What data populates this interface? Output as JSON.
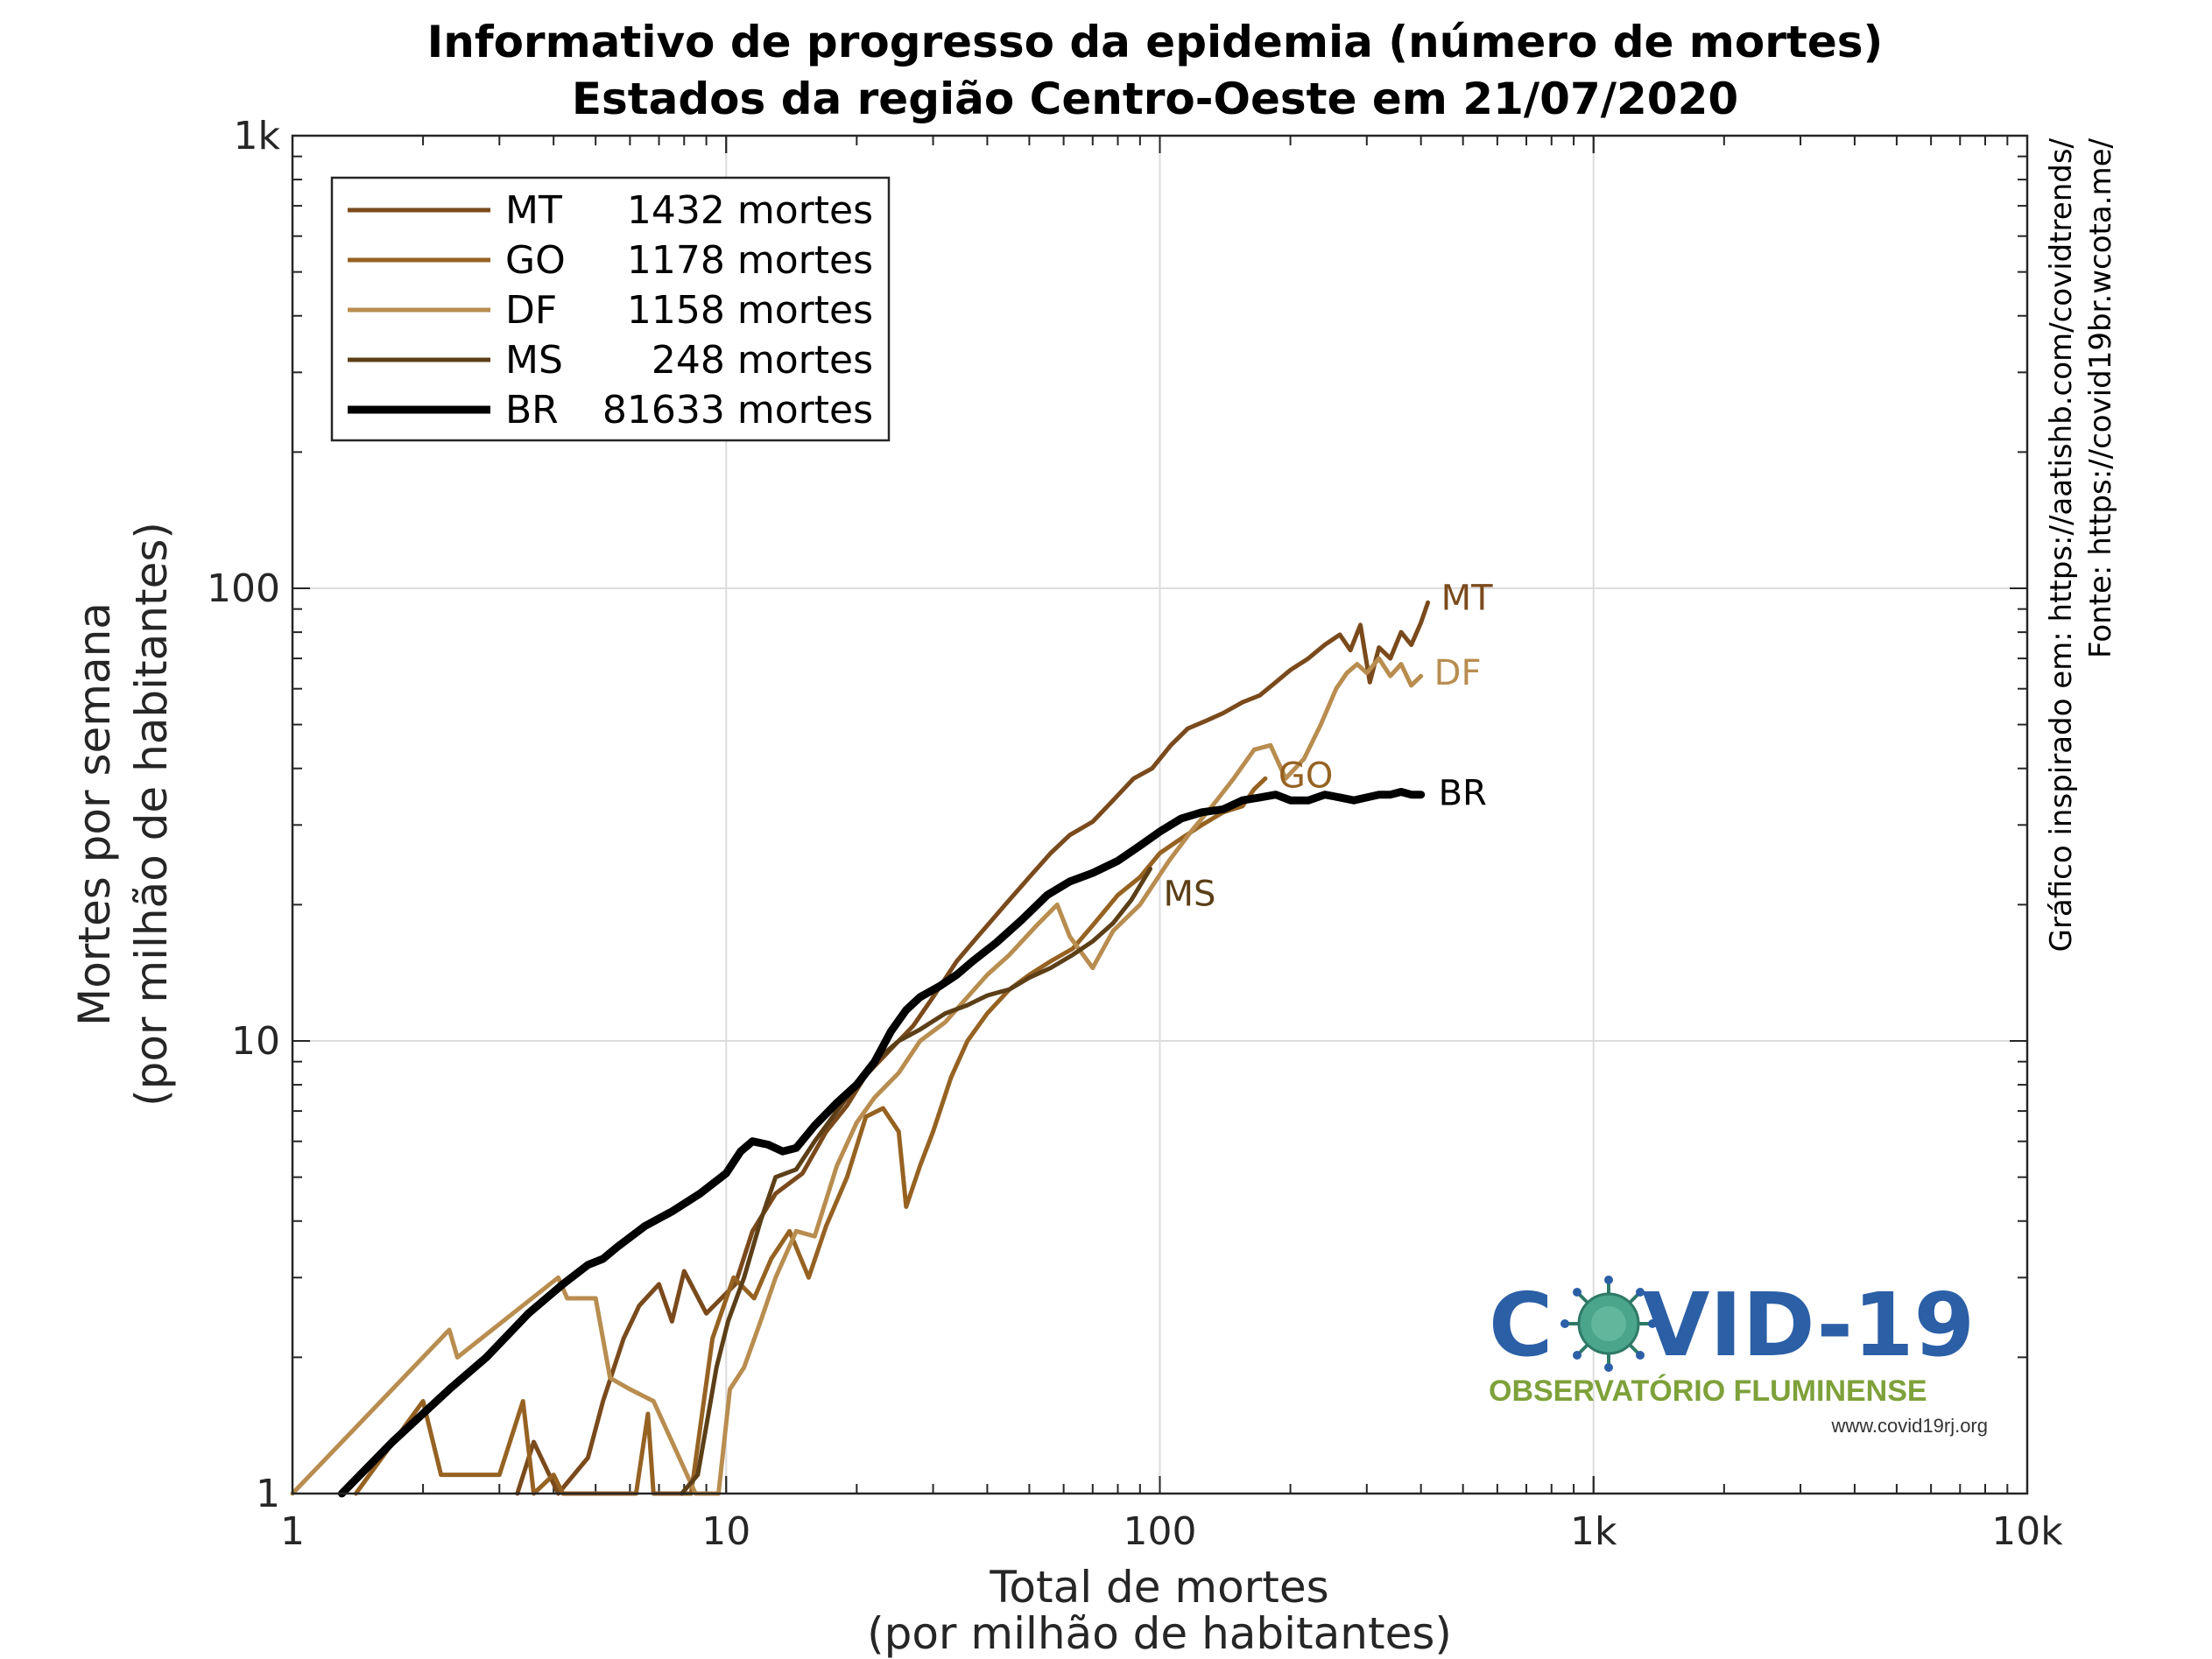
{
  "title_line1": "Informativo de progresso da epidemia (número de mortes)",
  "title_line2": "Estados da região Centro-Oeste em 21/07/2020",
  "credits": {
    "line1": "Gráfico inspirado em: https://aatishb.com/covidtrends/",
    "line2": "Fonte: https://covid19br.wcota.me/"
  },
  "logo": {
    "main_left": "C",
    "main_right": "VID-19",
    "subtitle": "OBSERVATÓRIO FLUMINENSE",
    "url": "www.covid19rj.org",
    "main_color": "#2b5fa6",
    "subtitle_color": "#7ea13a",
    "virus_color": "#4aa58a"
  },
  "chart_data": {
    "type": "line",
    "title": "Informativo de progresso da epidemia (número de mortes) Estados da região Centro-Oeste em 21/07/2020",
    "xlabel_line1": "Total de mortes",
    "xlabel_line2": "(por milhão de habitantes)",
    "ylabel_line1": "Mortes por semana",
    "ylabel_line2": "(por milhão de habitantes)",
    "x_scale": "log",
    "y_scale": "log",
    "xlim": [
      1,
      10000
    ],
    "ylim": [
      1,
      1000
    ],
    "x_ticks": [
      {
        "value": 1,
        "label": "1"
      },
      {
        "value": 10,
        "label": "10"
      },
      {
        "value": 100,
        "label": "100"
      },
      {
        "value": 1000,
        "label": "1k"
      },
      {
        "value": 10000,
        "label": "10k"
      }
    ],
    "y_ticks": [
      {
        "value": 1,
        "label": "1"
      },
      {
        "value": 10,
        "label": "10"
      },
      {
        "value": 100,
        "label": "100"
      },
      {
        "value": 1000,
        "label": "1k"
      }
    ],
    "grid": true,
    "legend_position": "top-left",
    "series": [
      {
        "name": "MT",
        "legend_deaths": "1432 mortes",
        "color": "#7a4a1c",
        "line_width": 5,
        "end_label": "MT",
        "points": [
          [
            3.3,
            1.0
          ],
          [
            3.6,
            1.3
          ],
          [
            4.1,
            1.0
          ],
          [
            4.8,
            1.2
          ],
          [
            5.2,
            1.6
          ],
          [
            5.8,
            2.2
          ],
          [
            6.3,
            2.6
          ],
          [
            7.0,
            2.9
          ],
          [
            7.5,
            2.4
          ],
          [
            8.0,
            3.1
          ],
          [
            9.0,
            2.5
          ],
          [
            10.5,
            2.9
          ],
          [
            11.5,
            3.8
          ],
          [
            13,
            4.6
          ],
          [
            15,
            5.1
          ],
          [
            17,
            6.3
          ],
          [
            19,
            7.2
          ],
          [
            21,
            8.4
          ],
          [
            24,
            9.6
          ],
          [
            27,
            10.8
          ],
          [
            30,
            12.5
          ],
          [
            34,
            15
          ],
          [
            38,
            17
          ],
          [
            44,
            20
          ],
          [
            50,
            23
          ],
          [
            56,
            26
          ],
          [
            62,
            28.5
          ],
          [
            70,
            30.5
          ],
          [
            78,
            34
          ],
          [
            87,
            38
          ],
          [
            96,
            40
          ],
          [
            106,
            45
          ],
          [
            116,
            49
          ],
          [
            128,
            51
          ],
          [
            140,
            53
          ],
          [
            155,
            56
          ],
          [
            170,
            58
          ],
          [
            185,
            62
          ],
          [
            200,
            66
          ],
          [
            220,
            70
          ],
          [
            240,
            75
          ],
          [
            260,
            79
          ],
          [
            275,
            73
          ],
          [
            290,
            83
          ],
          [
            305,
            62
          ],
          [
            320,
            74
          ],
          [
            340,
            70
          ],
          [
            360,
            80
          ],
          [
            380,
            75
          ],
          [
            400,
            84
          ],
          [
            415,
            93
          ]
        ]
      },
      {
        "name": "GO",
        "legend_deaths": "1178 mortes",
        "color": "#966222",
        "line_width": 5,
        "end_label": "GO",
        "points": [
          [
            1.4,
            1.0
          ],
          [
            2.0,
            1.6
          ],
          [
            2.2,
            1.1
          ],
          [
            2.5,
            1.1
          ],
          [
            3.0,
            1.1
          ],
          [
            3.4,
            1.6
          ],
          [
            3.6,
            1.0
          ],
          [
            4.0,
            1.1
          ],
          [
            4.2,
            1.0
          ],
          [
            6.2,
            1.0
          ],
          [
            6.6,
            1.5
          ],
          [
            6.8,
            1.0
          ],
          [
            8.3,
            1.0
          ],
          [
            9.3,
            2.2
          ],
          [
            10.4,
            3.0
          ],
          [
            11.6,
            2.7
          ],
          [
            12.7,
            3.3
          ],
          [
            14,
            3.8
          ],
          [
            15.5,
            3.0
          ],
          [
            17,
            3.9
          ],
          [
            19,
            5.0
          ],
          [
            21,
            6.8
          ],
          [
            23,
            7.1
          ],
          [
            25,
            6.3
          ],
          [
            26,
            4.3
          ],
          [
            28,
            5.3
          ],
          [
            30,
            6.3
          ],
          [
            33,
            8.3
          ],
          [
            36,
            10
          ],
          [
            40,
            11.5
          ],
          [
            45,
            13
          ],
          [
            50,
            14
          ],
          [
            56,
            15
          ],
          [
            63,
            16
          ],
          [
            70,
            18
          ],
          [
            80,
            21
          ],
          [
            90,
            23
          ],
          [
            100,
            26
          ],
          [
            112,
            28
          ],
          [
            125,
            30
          ],
          [
            140,
            32
          ],
          [
            155,
            33
          ],
          [
            165,
            36
          ],
          [
            175,
            38
          ]
        ]
      },
      {
        "name": "DF",
        "legend_deaths": "1158 mortes",
        "color": "#b88d4f",
        "line_width": 5,
        "end_label": "DF",
        "points": [
          [
            1.0,
            1.0
          ],
          [
            2.3,
            2.3
          ],
          [
            2.4,
            2.0
          ],
          [
            4.1,
            3.0
          ],
          [
            4.3,
            2.7
          ],
          [
            5.0,
            2.7
          ],
          [
            5.4,
            1.8
          ],
          [
            6.0,
            1.7
          ],
          [
            6.8,
            1.6
          ],
          [
            8.5,
            1.0
          ],
          [
            9.6,
            1.0
          ],
          [
            10.2,
            1.7
          ],
          [
            11,
            1.9
          ],
          [
            12,
            2.4
          ],
          [
            13,
            3.0
          ],
          [
            14.5,
            3.8
          ],
          [
            16,
            3.7
          ],
          [
            18,
            5.3
          ],
          [
            20,
            6.6
          ],
          [
            22,
            7.5
          ],
          [
            25,
            8.5
          ],
          [
            28,
            10
          ],
          [
            32,
            11
          ],
          [
            36,
            12.5
          ],
          [
            40,
            14
          ],
          [
            45,
            15.5
          ],
          [
            52,
            18
          ],
          [
            58,
            20
          ],
          [
            62,
            17
          ],
          [
            70,
            14.5
          ],
          [
            78,
            17.5
          ],
          [
            90,
            20
          ],
          [
            105,
            25
          ],
          [
            118,
            29
          ],
          [
            132,
            33
          ],
          [
            148,
            38
          ],
          [
            165,
            44
          ],
          [
            180,
            45
          ],
          [
            195,
            38
          ],
          [
            215,
            42
          ],
          [
            235,
            50
          ],
          [
            255,
            60
          ],
          [
            270,
            65
          ],
          [
            285,
            68
          ],
          [
            300,
            65
          ],
          [
            320,
            70
          ],
          [
            340,
            64
          ],
          [
            360,
            68
          ],
          [
            380,
            61
          ],
          [
            400,
            64
          ]
        ]
      },
      {
        "name": "MS",
        "legend_deaths": "248 mortes",
        "color": "#5c3f17",
        "line_width": 5,
        "end_label": "MS",
        "points": [
          [
            7.9,
            1.0
          ],
          [
            8.6,
            1.1
          ],
          [
            9.1,
            1.5
          ],
          [
            9.5,
            1.9
          ],
          [
            10.1,
            2.4
          ],
          [
            11.0,
            3.0
          ],
          [
            12.0,
            4.0
          ],
          [
            13.0,
            5.0
          ],
          [
            14.5,
            5.2
          ],
          [
            16,
            6.0
          ],
          [
            18,
            7.0
          ],
          [
            20,
            8.0
          ],
          [
            22,
            9.0
          ],
          [
            25,
            10.0
          ],
          [
            28,
            10.6
          ],
          [
            32,
            11.5
          ],
          [
            36,
            12.0
          ],
          [
            40,
            12.6
          ],
          [
            45,
            13.0
          ],
          [
            50,
            13.8
          ],
          [
            56,
            14.5
          ],
          [
            63,
            15.5
          ],
          [
            70,
            16.6
          ],
          [
            78,
            18.2
          ],
          [
            86,
            20.5
          ],
          [
            95,
            24.0
          ]
        ]
      },
      {
        "name": "BR",
        "legend_deaths": "81633 mortes",
        "color": "#000000",
        "line_width": 9,
        "end_label": "BR",
        "points": [
          [
            1.3,
            1.0
          ],
          [
            1.7,
            1.3
          ],
          [
            2.3,
            1.7
          ],
          [
            2.8,
            2.0
          ],
          [
            3.5,
            2.5
          ],
          [
            4.2,
            2.9
          ],
          [
            4.8,
            3.2
          ],
          [
            5.2,
            3.3
          ],
          [
            5.6,
            3.5
          ],
          [
            6.5,
            3.9
          ],
          [
            7.5,
            4.2
          ],
          [
            8.7,
            4.6
          ],
          [
            10,
            5.1
          ],
          [
            10.8,
            5.7
          ],
          [
            11.5,
            6.0
          ],
          [
            12.5,
            5.9
          ],
          [
            13.5,
            5.7
          ],
          [
            14.5,
            5.8
          ],
          [
            16,
            6.5
          ],
          [
            18,
            7.3
          ],
          [
            20,
            8.0
          ],
          [
            22,
            9.0
          ],
          [
            24,
            10.5
          ],
          [
            26,
            11.7
          ],
          [
            28,
            12.5
          ],
          [
            31,
            13.2
          ],
          [
            34,
            14.0
          ],
          [
            37,
            15
          ],
          [
            42,
            16.5
          ],
          [
            48,
            18.5
          ],
          [
            55,
            21
          ],
          [
            62,
            22.5
          ],
          [
            70,
            23.5
          ],
          [
            80,
            25
          ],
          [
            90,
            27
          ],
          [
            100,
            29
          ],
          [
            112,
            31
          ],
          [
            125,
            32
          ],
          [
            140,
            32.5
          ],
          [
            155,
            34
          ],
          [
            170,
            34.5
          ],
          [
            185,
            35
          ],
          [
            200,
            34
          ],
          [
            220,
            34
          ],
          [
            240,
            35
          ],
          [
            260,
            34.5
          ],
          [
            280,
            34
          ],
          [
            300,
            34.5
          ],
          [
            320,
            35
          ],
          [
            340,
            35
          ],
          [
            360,
            35.5
          ],
          [
            380,
            35
          ],
          [
            400,
            35
          ]
        ]
      }
    ]
  }
}
